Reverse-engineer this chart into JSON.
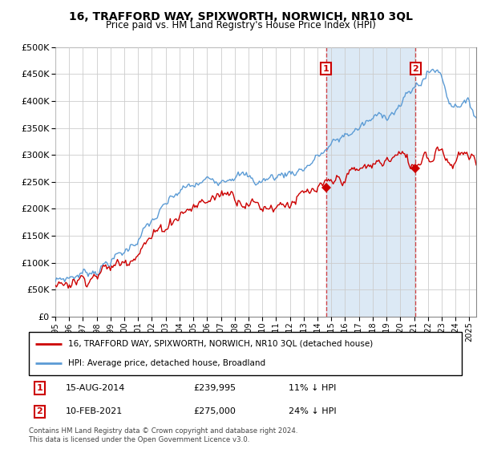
{
  "title": "16, TRAFFORD WAY, SPIXWORTH, NORWICH, NR10 3QL",
  "subtitle": "Price paid vs. HM Land Registry's House Price Index (HPI)",
  "legend_line1": "16, TRAFFORD WAY, SPIXWORTH, NORWICH, NR10 3QL (detached house)",
  "legend_line2": "HPI: Average price, detached house, Broadland",
  "annotation1_label": "1",
  "annotation1_date": "15-AUG-2014",
  "annotation1_price": "£239,995",
  "annotation1_hpi": "11% ↓ HPI",
  "annotation2_label": "2",
  "annotation2_date": "10-FEB-2021",
  "annotation2_price": "£275,000",
  "annotation2_hpi": "24% ↓ HPI",
  "footer": "Contains HM Land Registry data © Crown copyright and database right 2024.\nThis data is licensed under the Open Government Licence v3.0.",
  "hpi_color": "#5b9bd5",
  "price_color": "#cc0000",
  "annotation_color": "#cc0000",
  "shade_color": "#dce9f5",
  "background_color": "#ffffff",
  "grid_color": "#cccccc",
  "ylim": [
    0,
    500000
  ],
  "yticks": [
    0,
    50000,
    100000,
    150000,
    200000,
    250000,
    300000,
    350000,
    400000,
    450000,
    500000
  ],
  "sale1_x": 2014.62,
  "sale1_y": 239995,
  "sale2_x": 2021.1,
  "sale2_y": 275000,
  "xmin": 1995,
  "xmax": 2025.5
}
